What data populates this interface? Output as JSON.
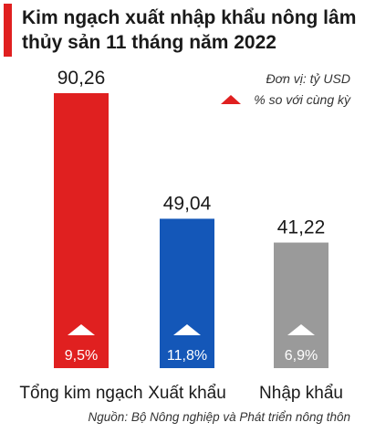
{
  "title": "Kim ngạch xuất nhập khẩu nông lâm thủy sản 11 tháng năm 2022",
  "unit_label": "Đơn vị: tỷ USD",
  "legend_label": "% so với cùng kỳ",
  "source": "Nguồn: Bộ Nông nghiệp và Phát triển nông thôn",
  "colors": {
    "accent": "#e02020",
    "export": "#1457b8",
    "import": "#9a9a9a"
  },
  "chart_data": {
    "type": "bar",
    "categories": [
      "Tổng kim ngạch",
      "Xuất khẩu",
      "Nhập khẩu"
    ],
    "values": [
      90.26,
      49.04,
      41.22
    ],
    "value_labels": [
      "90,26",
      "49,04",
      "41,22"
    ],
    "growth_labels": [
      "9,5%",
      "11,8%",
      "6,9%"
    ],
    "bar_colors": [
      "#e02020",
      "#1457b8",
      "#9a9a9a"
    ],
    "ylim": [
      0,
      90.26
    ],
    "grid": false
  }
}
